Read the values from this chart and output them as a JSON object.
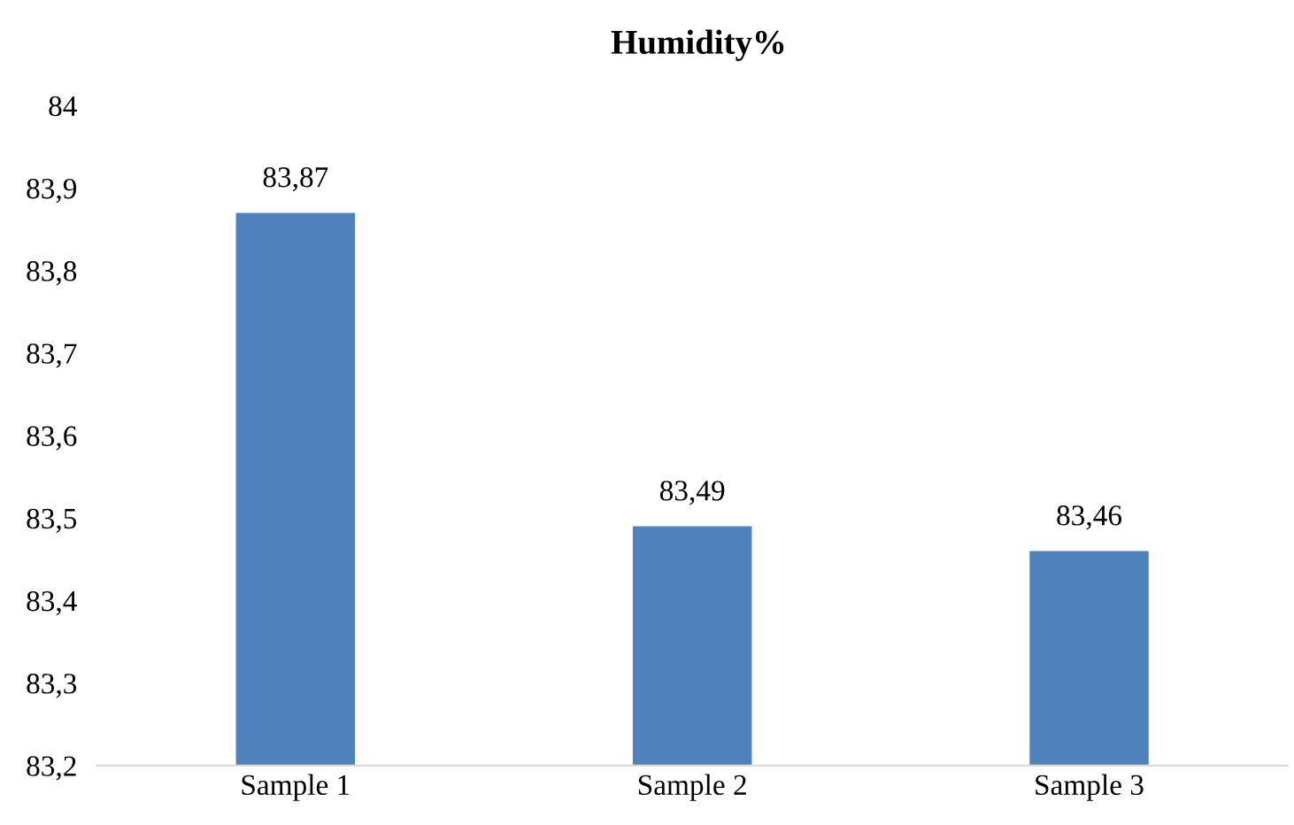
{
  "chart_data": {
    "type": "bar",
    "title": "Humidity%",
    "categories": [
      "Sample 1",
      "Sample 2",
      "Sample 3"
    ],
    "values": [
      83.87,
      83.49,
      83.46
    ],
    "color": "#4f81bd",
    "value_labels": [
      "83,87",
      "83,49",
      "83,46"
    ],
    "ylim": [
      83.2,
      84
    ],
    "yticks": [
      {
        "value": 83.2,
        "label": "83,2"
      },
      {
        "value": 83.3,
        "label": "83,3"
      },
      {
        "value": 83.4,
        "label": "83,4"
      },
      {
        "value": 83.5,
        "label": "83,5"
      },
      {
        "value": 83.6,
        "label": "83,6"
      },
      {
        "value": 83.7,
        "label": "83,7"
      },
      {
        "value": 83.8,
        "label": "83,8"
      },
      {
        "value": 83.9,
        "label": "83,9"
      },
      84
    ],
    "grid": false,
    "legend": false
  }
}
